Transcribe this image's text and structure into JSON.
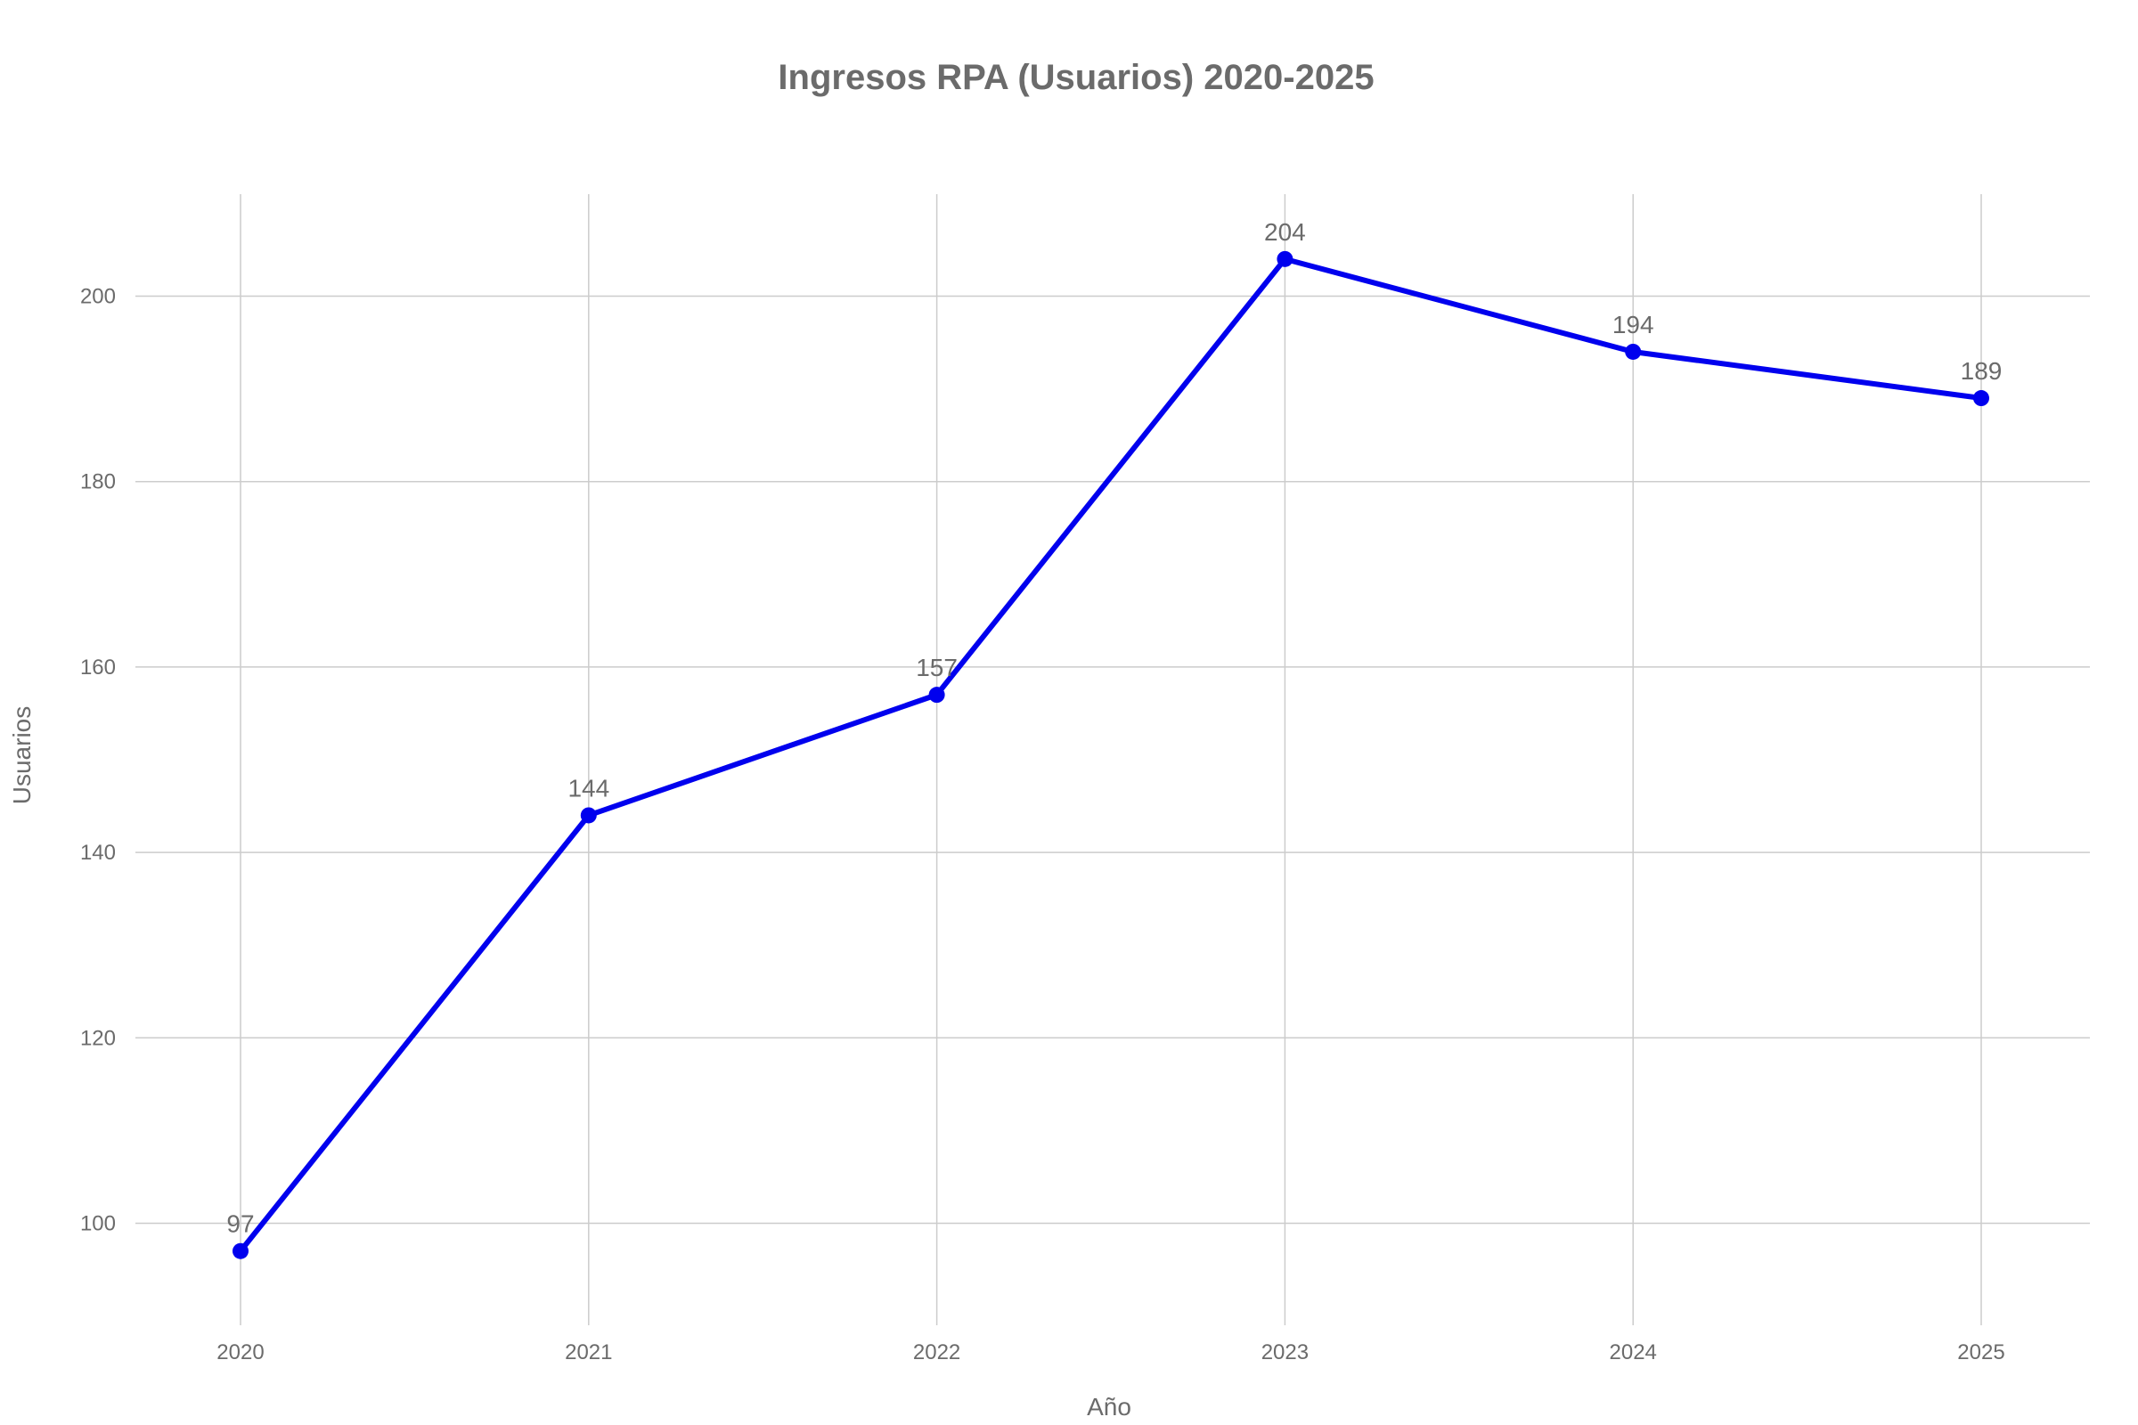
{
  "chart_data": {
    "type": "line",
    "title": "Ingresos RPA (Usuarios) 2020-2025",
    "xlabel": "Año",
    "ylabel": "Usuarios",
    "categories": [
      "2020",
      "2021",
      "2022",
      "2023",
      "2024",
      "2025"
    ],
    "series": [
      {
        "values": [
          97,
          144,
          157,
          204,
          194,
          189
        ],
        "color": "#0000ee"
      }
    ],
    "ylim": [
      89,
      211
    ],
    "yticks": [
      100,
      120,
      140,
      160,
      180,
      200
    ],
    "grid": true,
    "legend": "none",
    "data_labels": true
  }
}
